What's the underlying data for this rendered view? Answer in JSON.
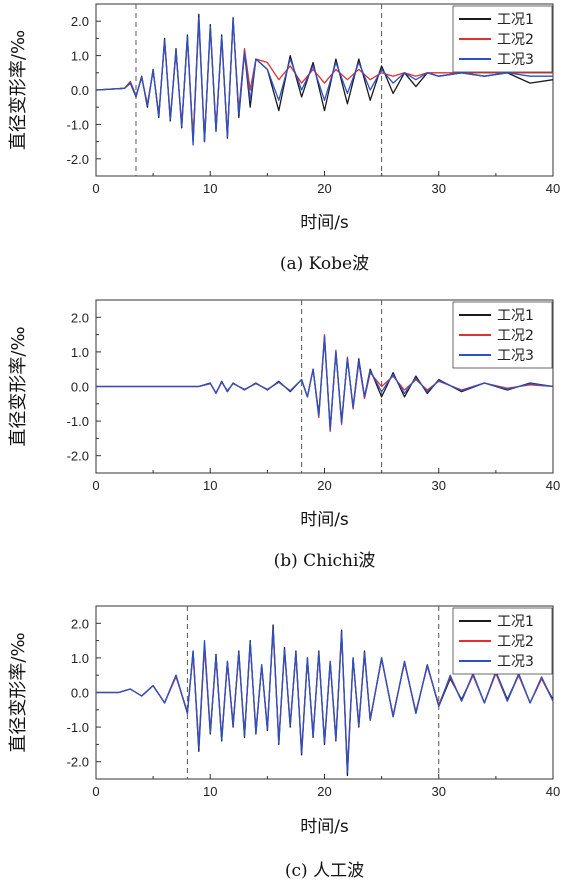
{
  "chart_data": [
    {
      "type": "line",
      "caption": "(a) Kobe波",
      "xlabel": "时间/s",
      "ylabel": "直径变形率/‰",
      "xlim": [
        0,
        40
      ],
      "ylim": [
        -2.5,
        2.5
      ],
      "xticks": [
        "0",
        "10",
        "20",
        "30",
        "40"
      ],
      "yticks": [
        "2.0",
        "1.0",
        "0.0",
        "-1.0",
        "-2.0"
      ],
      "vlines": [
        3.5,
        25
      ],
      "legend_position": "top-right",
      "colors": {
        "工况1": "#1a1a1a",
        "工况2": "#e03030",
        "工况3": "#2a52c8"
      },
      "series": [
        {
          "name": "工况1",
          "x": [
            0,
            2.5,
            3,
            3.5,
            4,
            4.5,
            5,
            5.5,
            6,
            6.5,
            7,
            7.5,
            8,
            8.5,
            9,
            9.5,
            10,
            10.5,
            11,
            11.5,
            12,
            12.5,
            13,
            13.5,
            14,
            15,
            16,
            17,
            18,
            19,
            20,
            21,
            22,
            23,
            24,
            25,
            26,
            27,
            28,
            29,
            30,
            32,
            34,
            36,
            38,
            40
          ],
          "y": [
            0,
            0.05,
            0.2,
            -0.2,
            0.4,
            -0.5,
            0.6,
            -0.8,
            1.5,
            -0.9,
            1.2,
            -1.1,
            1.6,
            -1.5,
            2.2,
            -1.5,
            1.9,
            -1.2,
            1.6,
            -1.4,
            2.1,
            -0.8,
            1.1,
            -0.5,
            0.9,
            0.6,
            -0.6,
            1.0,
            -0.2,
            0.8,
            -0.6,
            0.9,
            -0.4,
            0.9,
            -0.3,
            0.7,
            -0.1,
            0.5,
            0.1,
            0.5,
            0.4,
            0.5,
            0.4,
            0.5,
            0.2,
            0.3
          ]
        },
        {
          "name": "工况2",
          "x": [
            0,
            2.5,
            3,
            3.5,
            4,
            4.5,
            5,
            5.5,
            6,
            6.5,
            7,
            7.5,
            8,
            8.5,
            9,
            9.5,
            10,
            10.5,
            11,
            11.5,
            12,
            12.5,
            13,
            13.5,
            14,
            15,
            16,
            17,
            18,
            19,
            20,
            21,
            22,
            23,
            24,
            25,
            26,
            27,
            28,
            29,
            30,
            32,
            34,
            36,
            38,
            40
          ],
          "y": [
            0,
            0.05,
            0.25,
            -0.15,
            0.35,
            -0.4,
            0.55,
            -0.7,
            1.4,
            -0.8,
            1.1,
            -1.0,
            1.5,
            -1.4,
            2.0,
            -1.4,
            1.8,
            -1.1,
            1.5,
            -1.3,
            2.0,
            -0.6,
            1.2,
            0.0,
            0.9,
            0.8,
            0.3,
            0.7,
            0.2,
            0.6,
            0.2,
            0.6,
            0.3,
            0.6,
            0.3,
            0.5,
            0.4,
            0.5,
            0.4,
            0.5,
            0.5,
            0.5,
            0.5,
            0.5,
            0.5,
            0.5
          ]
        },
        {
          "name": "工况3",
          "x": [
            0,
            2.5,
            3,
            3.5,
            4,
            4.5,
            5,
            5.5,
            6,
            6.5,
            7,
            7.5,
            8,
            8.5,
            9,
            9.5,
            10,
            10.5,
            11,
            11.5,
            12,
            12.5,
            13,
            13.5,
            14,
            15,
            16,
            17,
            18,
            19,
            20,
            21,
            22,
            23,
            24,
            25,
            26,
            27,
            28,
            29,
            30,
            32,
            34,
            36,
            38,
            40
          ],
          "y": [
            0,
            0.05,
            0.22,
            -0.18,
            0.38,
            -0.45,
            0.58,
            -0.75,
            1.45,
            -0.85,
            1.15,
            -1.05,
            1.55,
            -1.6,
            2.1,
            -1.5,
            1.85,
            -1.2,
            1.55,
            -1.35,
            2.05,
            -0.7,
            1.1,
            -0.3,
            0.9,
            0.6,
            -0.3,
            0.9,
            0.0,
            0.7,
            -0.3,
            0.8,
            -0.1,
            0.8,
            0.0,
            0.6,
            0.2,
            0.5,
            0.3,
            0.5,
            0.4,
            0.5,
            0.4,
            0.5,
            0.4,
            0.4
          ]
        }
      ]
    },
    {
      "type": "line",
      "caption": "(b) Chichi波",
      "xlabel": "时间/s",
      "ylabel": "直径变形率/‰",
      "xlim": [
        0,
        40
      ],
      "ylim": [
        -2.5,
        2.5
      ],
      "xticks": [
        "0",
        "10",
        "20",
        "30",
        "40"
      ],
      "yticks": [
        "2.0",
        "1.0",
        "0.0",
        "-1.0",
        "-2.0"
      ],
      "vlines": [
        18,
        25
      ],
      "legend_position": "top-right",
      "colors": {
        "工况1": "#1a1a1a",
        "工况2": "#e03030",
        "工况3": "#2a52c8"
      },
      "series": [
        {
          "name": "工况1",
          "x": [
            0,
            5,
            9,
            10,
            10.5,
            11,
            11.5,
            12,
            13,
            14,
            15,
            16,
            17,
            18,
            18.5,
            19,
            19.5,
            20,
            20.5,
            21,
            21.5,
            22,
            22.5,
            23,
            23.5,
            24,
            25,
            26,
            27,
            28,
            29,
            30,
            32,
            34,
            36,
            38,
            40
          ],
          "y": [
            0,
            0,
            0,
            0.1,
            -0.2,
            0.15,
            -0.15,
            0.1,
            -0.1,
            0.1,
            -0.1,
            0.15,
            -0.15,
            0.2,
            -0.3,
            0.5,
            -0.8,
            1.4,
            -1.2,
            1.0,
            -1.0,
            0.8,
            -0.6,
            0.8,
            -0.3,
            0.5,
            -0.3,
            0.4,
            -0.3,
            0.3,
            -0.2,
            0.2,
            -0.15,
            0.1,
            -0.1,
            0.1,
            0
          ]
        },
        {
          "name": "工况2",
          "x": [
            0,
            5,
            9,
            10,
            10.5,
            11,
            11.5,
            12,
            13,
            14,
            15,
            16,
            17,
            18,
            18.5,
            19,
            19.5,
            20,
            20.5,
            21,
            21.5,
            22,
            22.5,
            23,
            23.5,
            24,
            25,
            26,
            27,
            28,
            29,
            30,
            32,
            34,
            36,
            38,
            40
          ],
          "y": [
            0,
            0,
            0,
            0.08,
            -0.18,
            0.12,
            -0.12,
            0.08,
            -0.08,
            0.08,
            -0.08,
            0.12,
            -0.12,
            0.2,
            -0.3,
            0.5,
            -0.9,
            1.5,
            -1.3,
            1.05,
            -1.1,
            0.85,
            -0.65,
            0.7,
            -0.35,
            0.4,
            0.0,
            0.3,
            -0.1,
            0.2,
            -0.1,
            0.15,
            -0.1,
            0.1,
            -0.05,
            0.05,
            0
          ]
        },
        {
          "name": "工况3",
          "x": [
            0,
            5,
            9,
            10,
            10.5,
            11,
            11.5,
            12,
            13,
            14,
            15,
            16,
            17,
            18,
            18.5,
            19,
            19.5,
            20,
            20.5,
            21,
            21.5,
            22,
            22.5,
            23,
            23.5,
            24,
            25,
            26,
            27,
            28,
            29,
            30,
            32,
            34,
            36,
            38,
            40
          ],
          "y": [
            0,
            0,
            0,
            0.09,
            -0.19,
            0.13,
            -0.13,
            0.09,
            -0.09,
            0.09,
            -0.09,
            0.13,
            -0.13,
            0.2,
            -0.3,
            0.5,
            -0.85,
            1.45,
            -1.25,
            1.0,
            -1.05,
            0.8,
            -0.6,
            0.75,
            -0.3,
            0.45,
            -0.15,
            0.35,
            -0.2,
            0.25,
            -0.15,
            0.18,
            -0.12,
            0.1,
            -0.08,
            0.08,
            0
          ]
        }
      ]
    },
    {
      "type": "line",
      "caption": "(c) 人工波",
      "xlabel": "时间/s",
      "ylabel": "直径变形率/‰",
      "xlim": [
        0,
        40
      ],
      "ylim": [
        -2.5,
        2.5
      ],
      "xticks": [
        "0",
        "10",
        "20",
        "30",
        "40"
      ],
      "yticks": [
        "2.0",
        "1.0",
        "0.0",
        "-1.0",
        "-2.0"
      ],
      "vlines": [
        8,
        30
      ],
      "legend_position": "top-right",
      "colors": {
        "工况1": "#1a1a1a",
        "工况2": "#e03030",
        "工况3": "#2a52c8"
      },
      "series": [
        {
          "name": "工况1",
          "x": [
            0,
            2,
            3,
            4,
            5,
            6,
            7,
            8,
            8.5,
            9,
            9.5,
            10,
            10.5,
            11,
            11.5,
            12,
            12.5,
            13,
            13.5,
            14,
            14.5,
            15,
            15.5,
            16,
            16.5,
            17,
            17.5,
            18,
            18.5,
            19,
            19.5,
            20,
            20.5,
            21,
            21.5,
            22,
            22.5,
            23,
            23.5,
            24,
            25,
            26,
            27,
            28,
            29,
            30,
            31,
            32,
            33,
            34,
            35,
            36,
            37,
            38,
            39,
            40
          ],
          "y": [
            0,
            0,
            0.1,
            -0.1,
            0.2,
            -0.3,
            0.5,
            -0.6,
            1.2,
            -1.7,
            1.4,
            -1.2,
            1.1,
            -1.4,
            0.9,
            -1.0,
            1.2,
            -1.3,
            1.5,
            -1.2,
            0.8,
            -1.1,
            1.95,
            -1.5,
            1.3,
            -1.0,
            1.2,
            -1.8,
            1.0,
            -1.3,
            1.2,
            -1.5,
            0.9,
            -1.4,
            1.8,
            -2.4,
            1.0,
            -1.0,
            1.2,
            -0.8,
            1.0,
            -0.7,
            0.9,
            -0.6,
            0.8,
            -0.4,
            0.4,
            -0.2,
            0.5,
            -0.3,
            0.6,
            -0.2,
            0.5,
            -0.3,
            0.4,
            -0.2
          ]
        },
        {
          "name": "工况2",
          "x": [
            0,
            2,
            3,
            4,
            5,
            6,
            7,
            8,
            8.5,
            9,
            9.5,
            10,
            10.5,
            11,
            11.5,
            12,
            12.5,
            13,
            13.5,
            14,
            14.5,
            15,
            15.5,
            16,
            16.5,
            17,
            17.5,
            18,
            18.5,
            19,
            19.5,
            20,
            20.5,
            21,
            21.5,
            22,
            22.5,
            23,
            23.5,
            24,
            25,
            26,
            27,
            28,
            29,
            30,
            31,
            32,
            33,
            34,
            35,
            36,
            37,
            38,
            39,
            40
          ],
          "y": [
            0,
            0,
            0.1,
            -0.1,
            0.2,
            -0.3,
            0.45,
            -0.55,
            1.1,
            -1.5,
            1.3,
            -1.1,
            1.0,
            -1.3,
            0.85,
            -0.9,
            1.1,
            -1.2,
            1.4,
            -1.1,
            0.75,
            -1.0,
            1.8,
            -1.4,
            1.2,
            -0.9,
            1.1,
            -1.7,
            0.95,
            -1.2,
            1.1,
            -1.4,
            0.85,
            -1.3,
            1.7,
            -2.2,
            0.95,
            -0.9,
            1.1,
            -0.75,
            0.95,
            -0.65,
            0.85,
            -0.55,
            0.75,
            -0.35,
            0.45,
            -0.25,
            0.5,
            -0.3,
            0.55,
            -0.25,
            0.5,
            -0.3,
            0.4,
            -0.25
          ]
        },
        {
          "name": "工况3",
          "x": [
            0,
            2,
            3,
            4,
            5,
            6,
            7,
            8,
            8.5,
            9,
            9.5,
            10,
            10.5,
            11,
            11.5,
            12,
            12.5,
            13,
            13.5,
            14,
            14.5,
            15,
            15.5,
            16,
            16.5,
            17,
            17.5,
            18,
            18.5,
            19,
            19.5,
            20,
            20.5,
            21,
            21.5,
            22,
            22.5,
            23,
            23.5,
            24,
            25,
            26,
            27,
            28,
            29,
            30,
            31,
            32,
            33,
            34,
            35,
            36,
            37,
            38,
            39,
            40
          ],
          "y": [
            0,
            0,
            0.1,
            -0.1,
            0.2,
            -0.3,
            0.5,
            -0.6,
            1.2,
            -1.6,
            1.5,
            -1.15,
            1.05,
            -1.35,
            0.9,
            -0.95,
            1.15,
            -1.25,
            1.45,
            -1.15,
            0.8,
            -1.05,
            1.85,
            -1.45,
            1.25,
            -0.95,
            1.15,
            -1.75,
            1.0,
            -1.25,
            1.15,
            -1.45,
            0.9,
            -1.35,
            1.75,
            -2.3,
            1.0,
            -0.95,
            1.15,
            -0.8,
            1.0,
            -0.7,
            0.9,
            -0.6,
            0.8,
            -0.4,
            0.5,
            -0.25,
            0.55,
            -0.3,
            0.6,
            -0.25,
            0.55,
            -0.3,
            0.45,
            -0.25
          ]
        }
      ]
    }
  ]
}
